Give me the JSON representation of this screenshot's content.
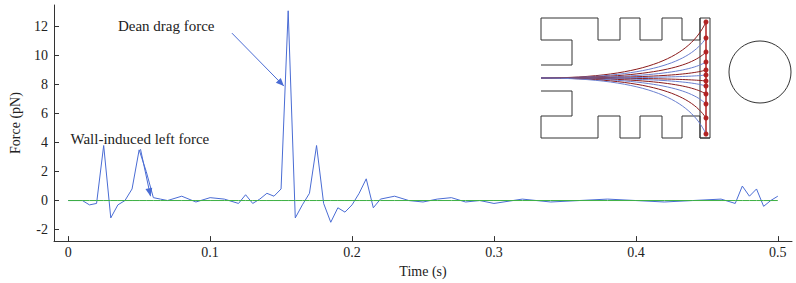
{
  "chart_data": {
    "type": "line",
    "xlabel": "Time (s)",
    "ylabel": "Force (pN)",
    "x": [
      0,
      0.01,
      0.015,
      0.02,
      0.025,
      0.03,
      0.035,
      0.04,
      0.045,
      0.05,
      0.055,
      0.06,
      0.065,
      0.07,
      0.08,
      0.09,
      0.1,
      0.11,
      0.12,
      0.125,
      0.13,
      0.135,
      0.14,
      0.145,
      0.15,
      0.155,
      0.16,
      0.165,
      0.17,
      0.175,
      0.18,
      0.185,
      0.19,
      0.195,
      0.2,
      0.205,
      0.21,
      0.215,
      0.22,
      0.23,
      0.24,
      0.25,
      0.26,
      0.27,
      0.28,
      0.29,
      0.3,
      0.32,
      0.34,
      0.36,
      0.38,
      0.4,
      0.42,
      0.44,
      0.46,
      0.47,
      0.475,
      0.48,
      0.485,
      0.49,
      0.495,
      0.5
    ],
    "series": [
      {
        "color": "#4a6cd4",
        "line_style": "solid",
        "values": [
          0,
          0,
          -0.3,
          -0.2,
          3.8,
          -1.2,
          -0.3,
          0,
          0.8,
          3.5,
          2,
          0.2,
          0.1,
          0,
          0.3,
          -0.1,
          0.2,
          0.1,
          -0.2,
          0.4,
          -0.2,
          0.1,
          0.5,
          0.3,
          0.8,
          13.1,
          -1.2,
          -0.3,
          0.5,
          3.8,
          -0.2,
          -1.5,
          -0.5,
          -0.8,
          -0.3,
          0.5,
          1.5,
          -0.5,
          0.1,
          0.3,
          0,
          -0.1,
          0.1,
          0.2,
          -0.1,
          0,
          -0.2,
          0.1,
          -0.1,
          0,
          0.1,
          0,
          -0.1,
          0,
          0.1,
          -0.2,
          1.0,
          0.3,
          0.8,
          -0.4,
          0,
          0.3
        ]
      },
      {
        "color": "#3cb043",
        "line_style": "solid",
        "values": [
          0,
          0,
          0,
          0,
          0,
          0,
          0,
          0,
          0,
          0,
          0,
          0,
          0,
          0,
          0,
          0,
          0,
          0,
          0,
          0,
          0,
          0,
          0,
          0,
          0,
          0,
          0,
          0,
          0,
          0,
          0,
          0,
          0,
          0,
          0,
          0,
          0,
          0,
          0,
          0,
          0,
          0,
          0,
          0,
          0,
          0,
          0,
          0,
          0,
          0,
          0,
          0,
          0,
          0,
          0,
          0,
          0,
          0,
          0,
          0,
          0,
          0
        ]
      }
    ],
    "xlim": [
      -0.01,
      0.51
    ],
    "ylim": [
      -2.8,
      13.5
    ],
    "xticks": [
      0,
      0.1,
      0.2,
      0.3,
      0.4,
      0.5
    ],
    "yticks": [
      -2,
      0,
      2,
      4,
      6,
      8,
      10,
      12
    ],
    "grid": false,
    "annotations": [
      {
        "text": "Dean drag force",
        "x": 0.152,
        "y": 7.9
      },
      {
        "text": "Wall-induced left force",
        "x": 0.058,
        "y": 0.3
      }
    ]
  }
}
